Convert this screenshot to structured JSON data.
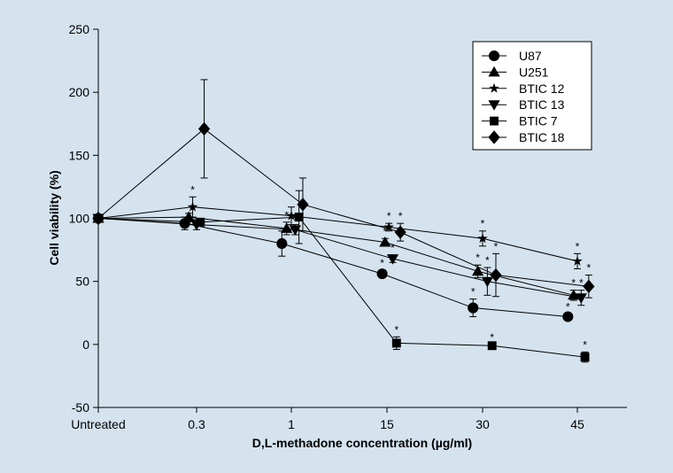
{
  "chart_data": {
    "type": "line",
    "title": "",
    "xlabel": "D,L-methadone concentration (µg/ml)",
    "ylabel": "Cell viability (%)",
    "categories": [
      "Untreated",
      "0.3",
      "1",
      "15",
      "30",
      "45"
    ],
    "ylim": [
      -50,
      250
    ],
    "yticks": [
      -50,
      0,
      50,
      100,
      150,
      200,
      250
    ],
    "grid": false,
    "legend_position": "top-right",
    "series": [
      {
        "name": "U87",
        "marker": "circle",
        "x": [
          0,
          0.88,
          1.9,
          2.95,
          3.9,
          4.9
        ],
        "values": [
          100,
          96,
          80,
          56,
          29,
          22
        ],
        "errors": [
          0,
          5,
          10,
          3,
          7,
          2
        ],
        "significant": [
          false,
          false,
          false,
          true,
          true,
          true
        ]
      },
      {
        "name": "U251",
        "marker": "triangle-up",
        "x": [
          0,
          0.92,
          1.95,
          2.98,
          3.95,
          4.96
        ],
        "values": [
          100,
          101,
          92,
          81,
          58,
          39
        ],
        "errors": [
          0,
          3,
          5,
          3,
          5,
          4
        ],
        "significant": [
          false,
          false,
          true,
          true,
          true,
          true
        ]
      },
      {
        "name": "BTIC 12",
        "marker": "star",
        "x": [
          0,
          0.96,
          2.0,
          3.02,
          4.0,
          5.0
        ],
        "values": [
          100,
          109,
          102,
          93,
          84,
          66
        ],
        "errors": [
          0,
          8,
          7,
          3,
          6,
          6
        ],
        "significant": [
          false,
          true,
          false,
          true,
          true,
          true
        ]
      },
      {
        "name": "BTIC 13",
        "marker": "triangle-down",
        "x": [
          0,
          1.0,
          2.04,
          3.06,
          4.05,
          5.04
        ],
        "values": [
          100,
          95,
          91,
          68,
          50,
          37
        ],
        "errors": [
          0,
          4,
          4,
          3,
          11,
          6
        ],
        "significant": [
          false,
          false,
          true,
          true,
          true,
          true
        ]
      },
      {
        "name": "BTIC 7",
        "marker": "square",
        "x": [
          0,
          1.04,
          2.08,
          3.1,
          4.1,
          5.08
        ],
        "values": [
          100,
          97,
          101,
          1,
          -1,
          -10
        ],
        "errors": [
          0,
          3,
          21,
          5,
          1,
          4
        ],
        "significant": [
          false,
          false,
          false,
          true,
          true,
          true
        ]
      },
      {
        "name": "BTIC 18",
        "marker": "diamond",
        "x": [
          0,
          1.08,
          2.12,
          3.14,
          4.14,
          5.12
        ],
        "values": [
          100,
          171,
          111,
          89,
          55,
          46
        ],
        "errors": [
          0,
          39,
          21,
          7,
          17,
          9
        ],
        "significant": [
          false,
          false,
          false,
          true,
          true,
          true
        ]
      }
    ],
    "significance_marker": "*"
  }
}
